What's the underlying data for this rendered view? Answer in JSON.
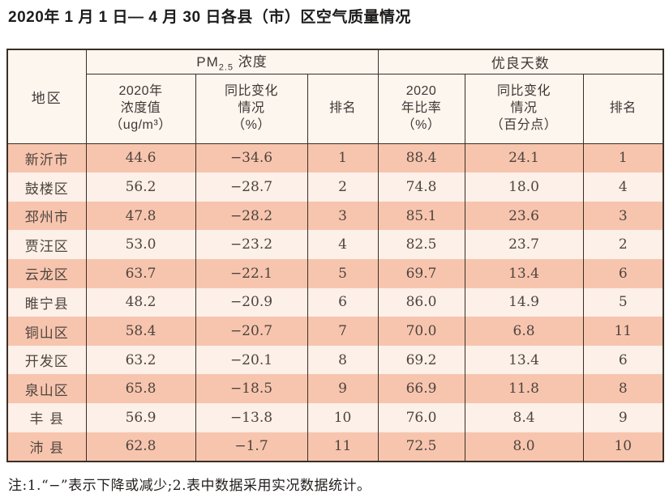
{
  "title": "2020年 1 月 1 日— 4 月 30 日各县（市）区空气质量情况",
  "table": {
    "region_header": "地区",
    "pm_group": {
      "main": "PM",
      "sub": "2.5",
      "rest": " 浓度"
    },
    "good_group": "优良天数",
    "subheaders": {
      "pm_value": "2020年\n浓度值\n（ug/m³）",
      "pm_change": "同比变化\n情况\n（%）",
      "pm_rank": "排名",
      "good_rate": "2020\n年比率\n（%）",
      "good_change": "同比变化\n情况\n（百分点）",
      "good_rank": "排名"
    },
    "rows": [
      {
        "region": "新沂市",
        "pm_value": "44.6",
        "pm_change": "−34.6",
        "pm_rank": "1",
        "good_rate": "88.4",
        "good_change": "24.1",
        "good_rank": "1"
      },
      {
        "region": "鼓楼区",
        "pm_value": "56.2",
        "pm_change": "−28.7",
        "pm_rank": "2",
        "good_rate": "74.8",
        "good_change": "18.0",
        "good_rank": "4"
      },
      {
        "region": "邳州市",
        "pm_value": "47.8",
        "pm_change": "−28.2",
        "pm_rank": "3",
        "good_rate": "85.1",
        "good_change": "23.6",
        "good_rank": "3"
      },
      {
        "region": "贾汪区",
        "pm_value": "53.0",
        "pm_change": "−23.2",
        "pm_rank": "4",
        "good_rate": "82.5",
        "good_change": "23.7",
        "good_rank": "2"
      },
      {
        "region": "云龙区",
        "pm_value": "63.7",
        "pm_change": "−22.1",
        "pm_rank": "5",
        "good_rate": "69.7",
        "good_change": "13.4",
        "good_rank": "6"
      },
      {
        "region": "睢宁县",
        "pm_value": "48.2",
        "pm_change": "−20.9",
        "pm_rank": "6",
        "good_rate": "86.0",
        "good_change": "14.9",
        "good_rank": "5"
      },
      {
        "region": "铜山区",
        "pm_value": "58.4",
        "pm_change": "−20.7",
        "pm_rank": "7",
        "good_rate": "70.0",
        "good_change": "6.8",
        "good_rank": "11"
      },
      {
        "region": "开发区",
        "pm_value": "63.2",
        "pm_change": "−20.1",
        "pm_rank": "8",
        "good_rate": "69.2",
        "good_change": "13.4",
        "good_rank": "6"
      },
      {
        "region": "泉山区",
        "pm_value": "65.8",
        "pm_change": "−18.5",
        "pm_rank": "9",
        "good_rate": "66.9",
        "good_change": "11.8",
        "good_rank": "8"
      },
      {
        "region": "丰 县",
        "pm_value": "56.9",
        "pm_change": "−13.8",
        "pm_rank": "10",
        "good_rate": "76.0",
        "good_change": "8.4",
        "good_rank": "9"
      },
      {
        "region": "沛 县",
        "pm_value": "62.8",
        "pm_change": "−1.7",
        "pm_rank": "11",
        "good_rate": "72.5",
        "good_change": "8.0",
        "good_rank": "10"
      }
    ]
  },
  "footnote": "注:1.“−”表示下降或减少;2.表中数据采用实况数据统计。",
  "colors": {
    "row_dark": "#f7c5ae",
    "row_light": "#fcf0e8",
    "header_bg": "#fdf6ef",
    "border": "#3a2e26",
    "text_dark": "#1e1c1b",
    "text_cell": "#4e443f"
  }
}
